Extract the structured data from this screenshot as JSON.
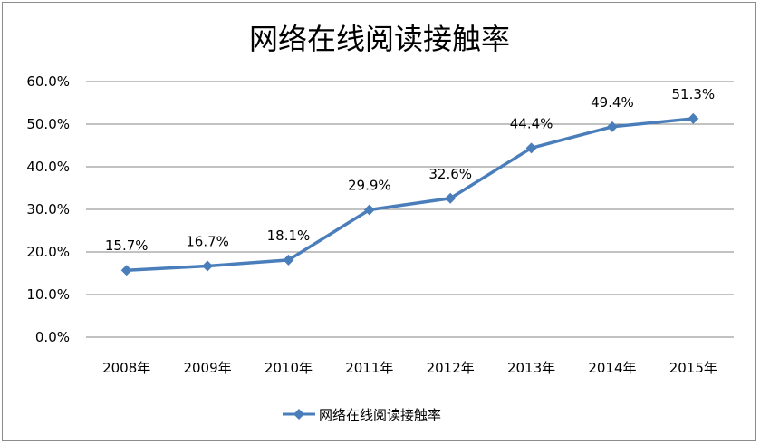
{
  "chart_data": {
    "type": "line",
    "title": "网络在线阅读接触率",
    "categories": [
      "2008年",
      "2009年",
      "2010年",
      "2011年",
      "2012年",
      "2013年",
      "2014年",
      "2015年"
    ],
    "series": [
      {
        "name": "网络在线阅读接触率",
        "values": [
          15.7,
          16.7,
          18.1,
          29.9,
          32.6,
          44.4,
          49.4,
          51.3
        ],
        "labels": [
          "15.7%",
          "16.7%",
          "18.1%",
          "29.9%",
          "32.6%",
          "44.4%",
          "49.4%",
          "51.3%"
        ],
        "color": "#4a7ebb",
        "marker": "diamond"
      }
    ],
    "yticks": [
      "0.0%",
      "10.0%",
      "20.0%",
      "30.0%",
      "40.0%",
      "50.0%",
      "60.0%"
    ],
    "ylim": [
      0,
      60
    ],
    "xlabel": "",
    "ylabel": "",
    "grid": true,
    "legend_position": "bottom"
  }
}
